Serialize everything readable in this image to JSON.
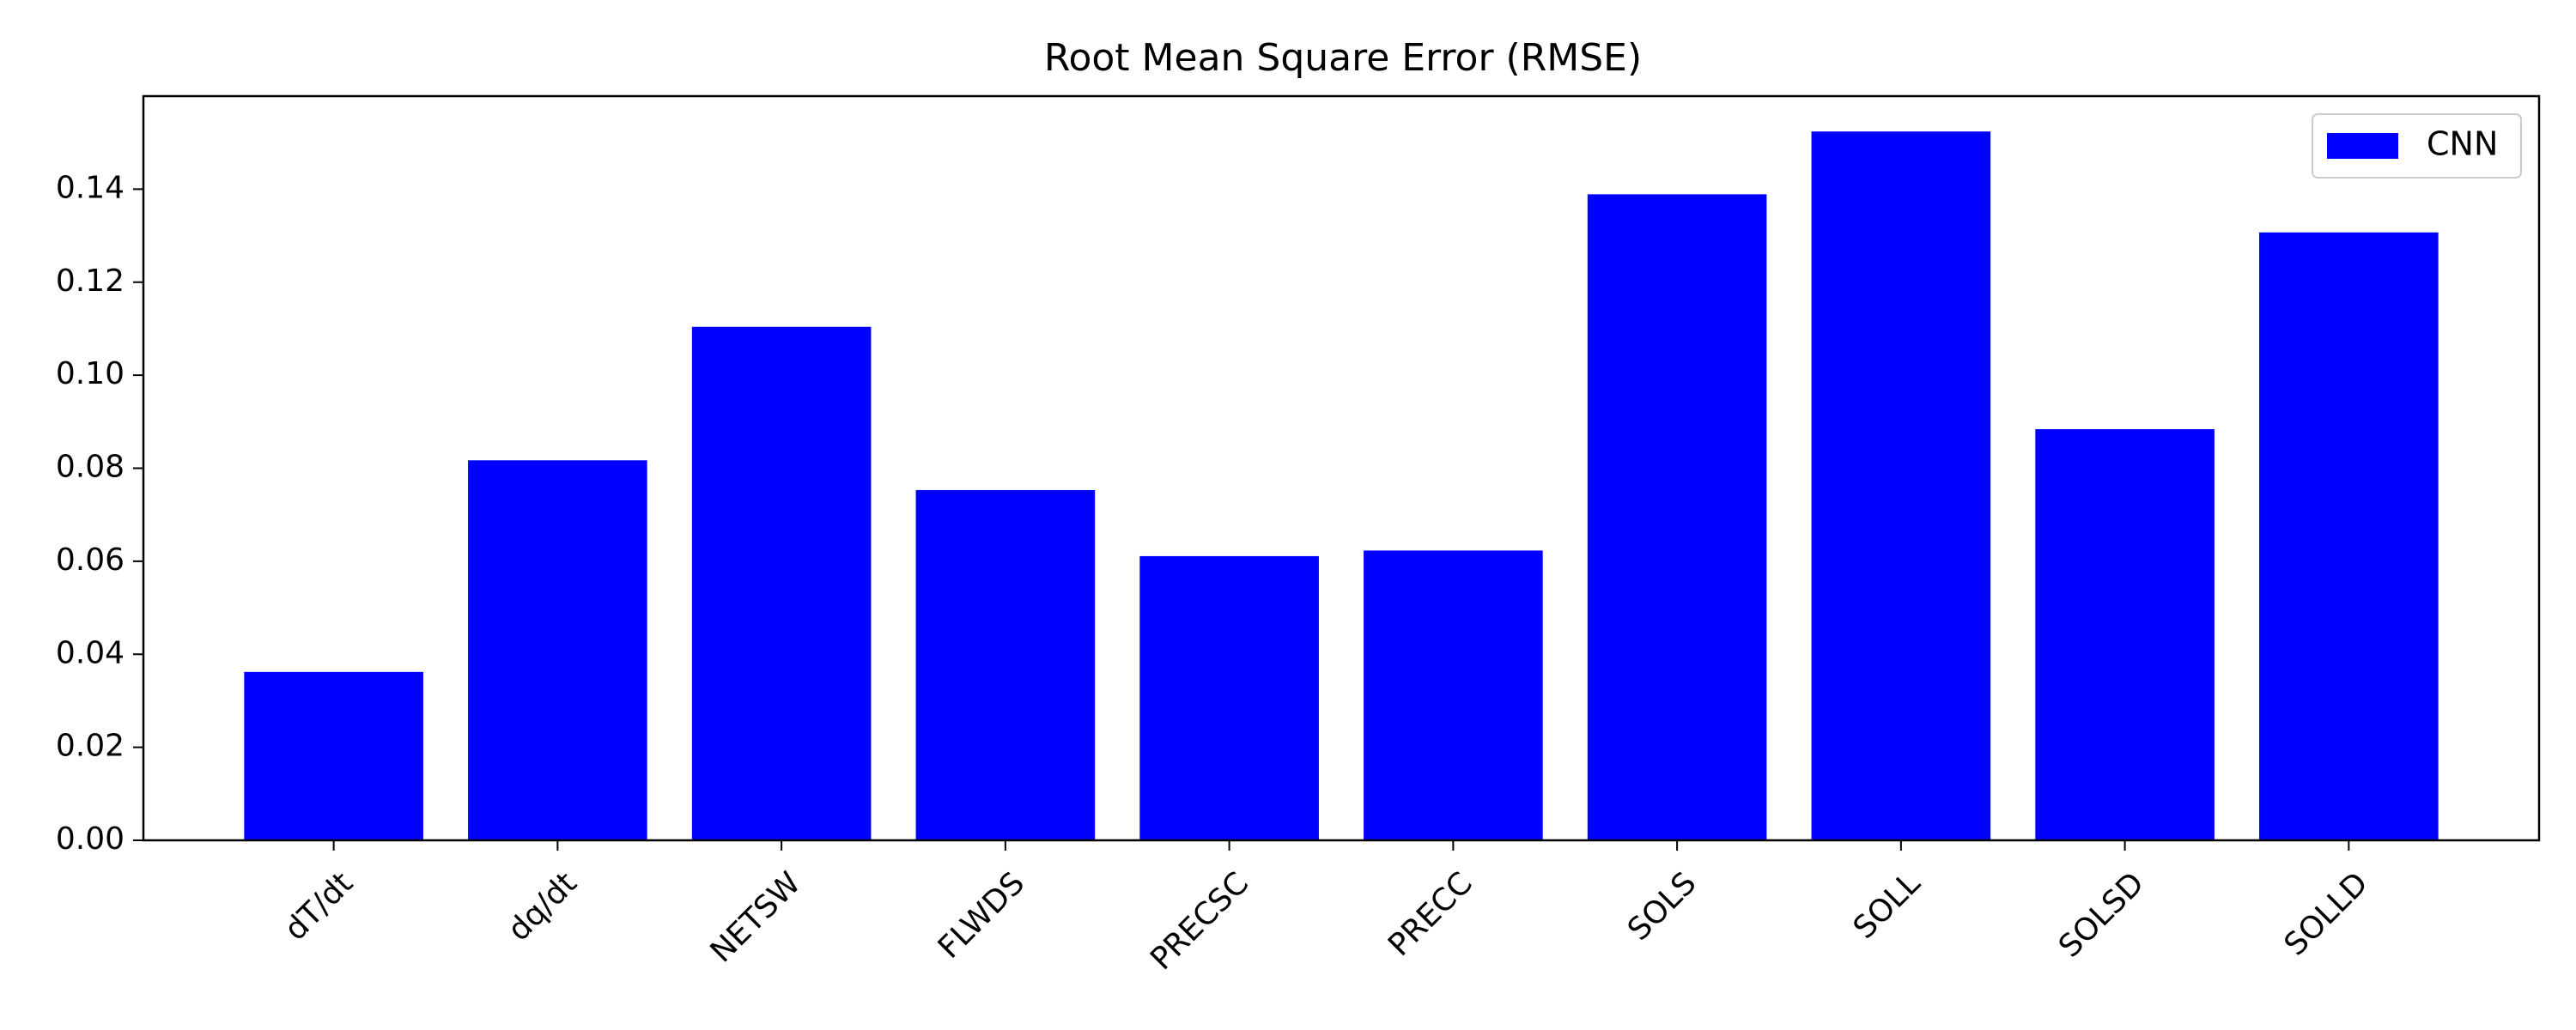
{
  "chart_data": {
    "type": "bar",
    "title": "Root Mean Square Error (RMSE)",
    "xlabel": "",
    "ylabel": "",
    "categories": [
      "dT/dt",
      "dq/dt",
      "NETSW",
      "FLWDS",
      "PRECSC",
      "PRECC",
      "SOLS",
      "SOLL",
      "SOLSD",
      "SOLLD"
    ],
    "series": [
      {
        "name": "CNN",
        "color": "#0000ff",
        "values": [
          0.0362,
          0.0817,
          0.1104,
          0.0753,
          0.0611,
          0.0623,
          0.1389,
          0.1524,
          0.0884,
          0.1307
        ]
      }
    ],
    "ylim": [
      0,
      0.16
    ],
    "yticks": [
      "0.00",
      "0.02",
      "0.04",
      "0.06",
      "0.08",
      "0.10",
      "0.12",
      "0.14"
    ],
    "grid": false,
    "legend_position": "top-right"
  }
}
